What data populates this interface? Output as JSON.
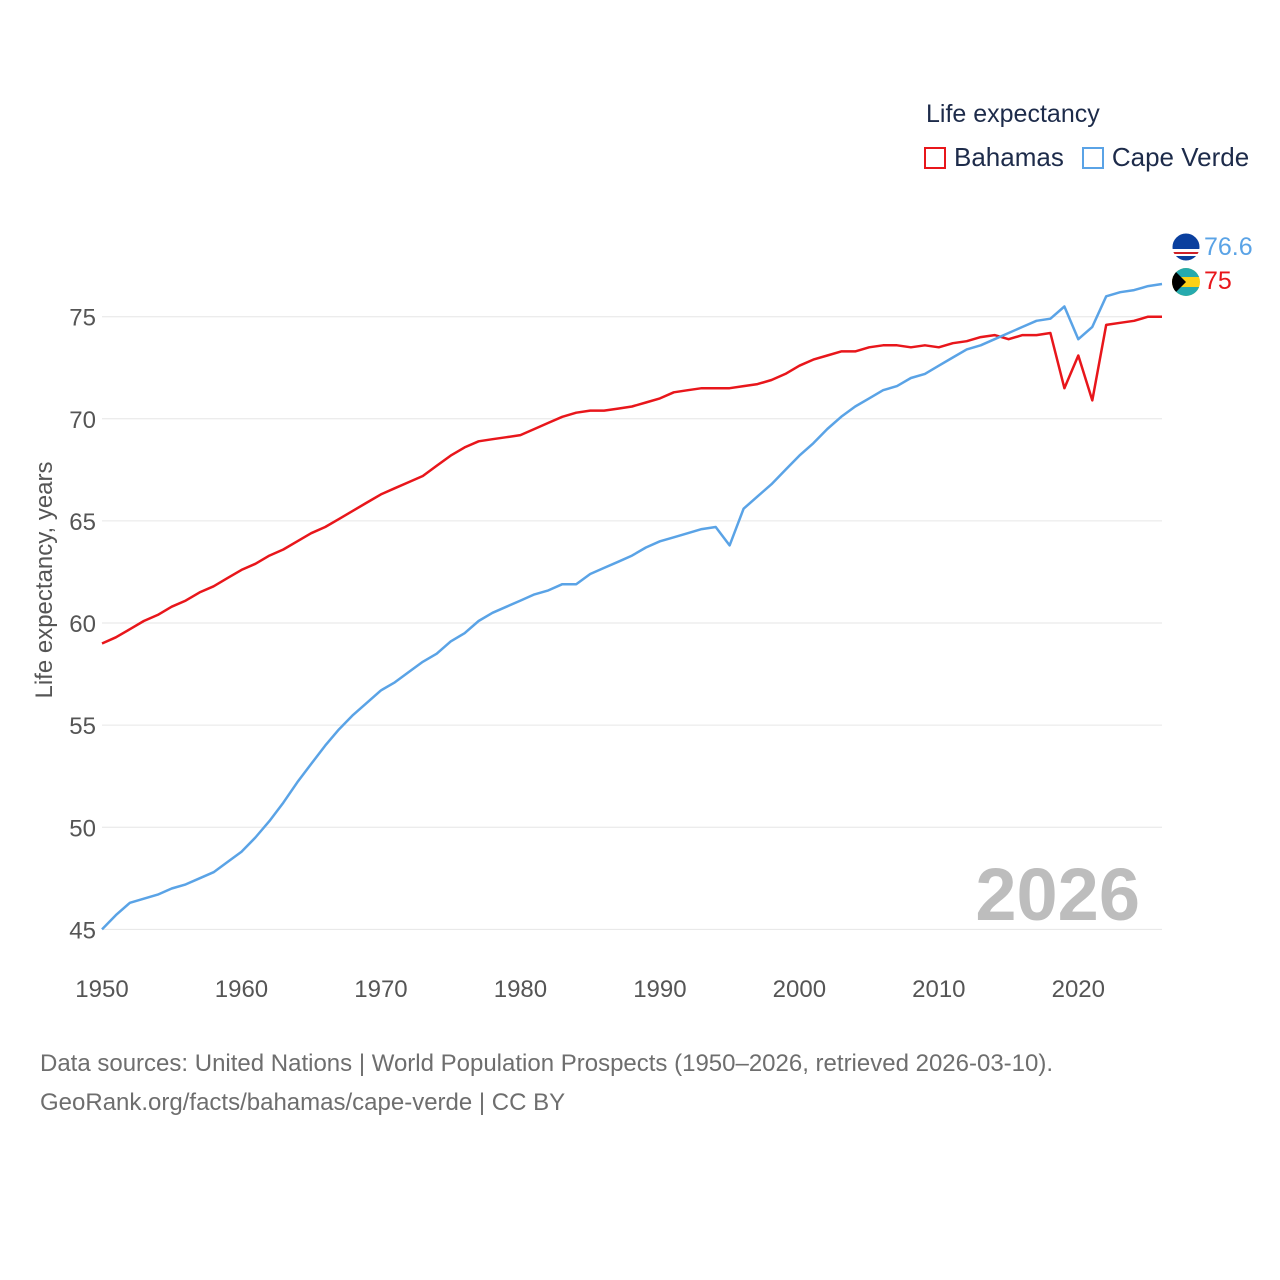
{
  "chart_data": {
    "type": "line",
    "title": "",
    "ylabel": "Life expectancy, years",
    "xlabel": "",
    "xlim": [
      1950,
      2026
    ],
    "ylim": [
      43.5,
      79
    ],
    "x_ticks": [
      1950,
      1960,
      1970,
      1980,
      1990,
      2000,
      2010,
      2020
    ],
    "y_ticks": [
      45,
      50,
      55,
      60,
      65,
      70,
      75
    ],
    "grid": true,
    "legend_title": "Life expectancy",
    "year_label": "2026",
    "x": [
      1950,
      1951,
      1952,
      1953,
      1954,
      1955,
      1956,
      1957,
      1958,
      1959,
      1960,
      1961,
      1962,
      1963,
      1964,
      1965,
      1966,
      1967,
      1968,
      1969,
      1970,
      1971,
      1972,
      1973,
      1974,
      1975,
      1976,
      1977,
      1978,
      1979,
      1980,
      1981,
      1982,
      1983,
      1984,
      1985,
      1986,
      1987,
      1988,
      1989,
      1990,
      1991,
      1992,
      1993,
      1994,
      1995,
      1996,
      1997,
      1998,
      1999,
      2000,
      2001,
      2002,
      2003,
      2004,
      2005,
      2006,
      2007,
      2008,
      2009,
      2010,
      2011,
      2012,
      2013,
      2014,
      2015,
      2016,
      2017,
      2018,
      2019,
      2020,
      2021,
      2022,
      2023,
      2024,
      2025,
      2026
    ],
    "series": [
      {
        "name": "Bahamas",
        "color": "#e8161b",
        "end_label": "75",
        "flag": "bahamas-flag",
        "values": [
          59.0,
          59.3,
          59.7,
          60.1,
          60.4,
          60.8,
          61.1,
          61.5,
          61.8,
          62.2,
          62.6,
          62.9,
          63.3,
          63.6,
          64.0,
          64.4,
          64.7,
          65.1,
          65.5,
          65.9,
          66.3,
          66.6,
          66.9,
          67.2,
          67.7,
          68.2,
          68.6,
          68.9,
          69.0,
          69.1,
          69.2,
          69.5,
          69.8,
          70.1,
          70.3,
          70.4,
          70.4,
          70.5,
          70.6,
          70.8,
          71.0,
          71.3,
          71.4,
          71.5,
          71.5,
          71.5,
          71.6,
          71.7,
          71.9,
          72.2,
          72.6,
          72.9,
          73.1,
          73.3,
          73.3,
          73.5,
          73.6,
          73.6,
          73.5,
          73.6,
          73.5,
          73.7,
          73.8,
          74.0,
          74.1,
          73.9,
          74.1,
          74.1,
          74.2,
          71.5,
          73.1,
          70.9,
          74.6,
          74.7,
          74.8,
          75.0,
          75.0
        ]
      },
      {
        "name": "Cape Verde",
        "color": "#5aa3e6",
        "end_label": "76.6",
        "flag": "cape-verde-flag",
        "values": [
          45.0,
          45.7,
          46.3,
          46.5,
          46.7,
          47.0,
          47.2,
          47.5,
          47.8,
          48.3,
          48.8,
          49.5,
          50.3,
          51.2,
          52.2,
          53.1,
          54.0,
          54.8,
          55.5,
          56.1,
          56.7,
          57.1,
          57.6,
          58.1,
          58.5,
          59.1,
          59.5,
          60.1,
          60.5,
          60.8,
          61.1,
          61.4,
          61.6,
          61.9,
          61.9,
          62.4,
          62.7,
          63.0,
          63.3,
          63.7,
          64.0,
          64.2,
          64.4,
          64.6,
          64.7,
          63.8,
          65.6,
          66.2,
          66.8,
          67.5,
          68.2,
          68.8,
          69.5,
          70.1,
          70.6,
          71.0,
          71.4,
          71.6,
          72.0,
          72.2,
          72.6,
          73.0,
          73.4,
          73.6,
          73.9,
          74.2,
          74.5,
          74.8,
          74.9,
          75.5,
          73.9,
          74.5,
          76.0,
          76.2,
          76.3,
          76.5,
          76.6
        ]
      }
    ]
  },
  "legend": {
    "title": "Life expectancy",
    "items": [
      {
        "label": "Bahamas",
        "color": "#e8161b"
      },
      {
        "label": "Cape Verde",
        "color": "#5aa3e6"
      }
    ]
  },
  "source": {
    "line1": "Data sources: United Nations | World Population Prospects (1950–2026, retrieved 2026-03-10).",
    "line2": "GeoRank.org/facts/bahamas/cape-verde | CC BY"
  }
}
